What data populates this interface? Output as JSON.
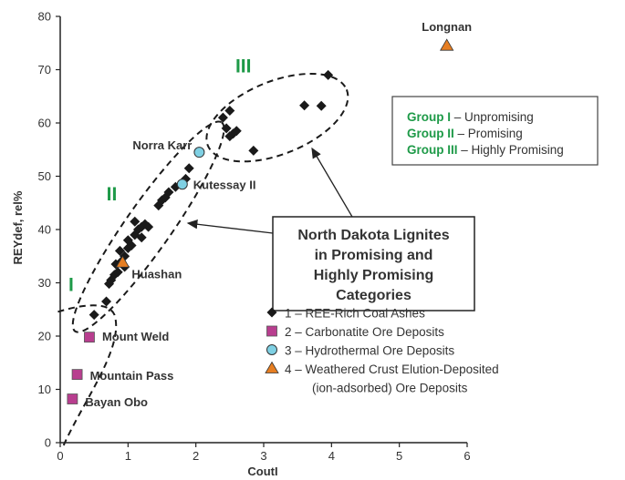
{
  "chart_data": {
    "type": "scatter",
    "xlabel": "CoutI",
    "ylabel": "REYdef, rel%",
    "xlim": [
      0,
      6
    ],
    "ylim": [
      0,
      80
    ],
    "x_ticks": [
      "0",
      "1",
      "2",
      "3",
      "4",
      "5",
      "6"
    ],
    "y_ticks": [
      "0",
      "10",
      "20",
      "30",
      "40",
      "50",
      "60",
      "70",
      "80"
    ],
    "grid": false,
    "legend_position": "bottom-right",
    "series": [
      {
        "name": "1 – REE-Rich Coal Ashes",
        "marker": "diamond",
        "color": "#1a1a1a",
        "points": [
          [
            0.5,
            24
          ],
          [
            0.68,
            26.5
          ],
          [
            0.72,
            29.8
          ],
          [
            0.75,
            30.5
          ],
          [
            0.8,
            31.5
          ],
          [
            0.85,
            32
          ],
          [
            0.82,
            33.5
          ],
          [
            0.9,
            34
          ],
          [
            0.95,
            35
          ],
          [
            0.88,
            36
          ],
          [
            1.0,
            36.5
          ],
          [
            1.05,
            37
          ],
          [
            1.0,
            38
          ],
          [
            1.1,
            39
          ],
          [
            1.15,
            40
          ],
          [
            1.2,
            40.5
          ],
          [
            1.1,
            41.5
          ],
          [
            1.25,
            41
          ],
          [
            1.3,
            40.5
          ],
          [
            1.2,
            38.5
          ],
          [
            0.95,
            33
          ],
          [
            1.45,
            44.5
          ],
          [
            1.5,
            45.5
          ],
          [
            1.55,
            46
          ],
          [
            1.6,
            47
          ],
          [
            1.7,
            48
          ],
          [
            1.85,
            49.5
          ],
          [
            1.9,
            51.5
          ],
          [
            2.4,
            61
          ],
          [
            2.5,
            62.3
          ],
          [
            2.45,
            59
          ],
          [
            2.55,
            58
          ],
          [
            2.5,
            57.5
          ],
          [
            2.6,
            58.5
          ],
          [
            2.85,
            54.8
          ],
          [
            3.6,
            63.3
          ],
          [
            3.85,
            63.2
          ],
          [
            3.95,
            69
          ]
        ]
      },
      {
        "name": "2 – Carbonatite Ore Deposits",
        "marker": "square",
        "color": "#b83e8f",
        "points": [
          [
            0.43,
            19.8
          ],
          [
            0.25,
            12.8
          ],
          [
            0.18,
            8.2
          ]
        ]
      },
      {
        "name": "3 – Hydrothermal Ore Deposits",
        "marker": "circle",
        "color": "#7fd0e3",
        "points": [
          [
            2.05,
            54.5
          ],
          [
            1.8,
            48.5
          ]
        ]
      },
      {
        "name": "4 – Weathered Crust Elution-Deposited (ion-adsorbed) Ore Deposits",
        "marker": "triangle",
        "color": "#e67e22",
        "points": [
          [
            0.92,
            33.8
          ],
          [
            5.7,
            74.5
          ]
        ]
      }
    ],
    "point_labels": [
      {
        "text": "Longnan",
        "x": 5.7,
        "y": 74.5
      },
      {
        "text": "Norra Karr",
        "x": 2.05,
        "y": 54.5
      },
      {
        "text": "Kutessay II",
        "x": 1.8,
        "y": 48.5
      },
      {
        "text": "Huashan",
        "x": 0.92,
        "y": 33.8
      },
      {
        "text": "Mount Weld",
        "x": 0.43,
        "y": 19.8
      },
      {
        "text": "Mountain Pass",
        "x": 0.25,
        "y": 12.8
      },
      {
        "text": "Bayan Obo",
        "x": 0.18,
        "y": 8.2
      }
    ],
    "group_labels": [
      "I",
      "II",
      "III"
    ],
    "group_box": {
      "lines": [
        {
          "group": "Group I",
          "desc": " – Unpromising"
        },
        {
          "group": "Group II",
          "desc": " – Promising"
        },
        {
          "group": "Group III",
          "desc": " – Highly Promising"
        }
      ]
    },
    "callout": {
      "lines": [
        "North Dakota Lignites",
        "in Promising and",
        "Highly Promising",
        "Categories"
      ]
    },
    "legend": {
      "lines": [
        "1 – REE-Rich Coal Ashes",
        "2 – Carbonatite Ore Deposits",
        "3 – Hydrothermal Ore Deposits",
        "4 – Weathered Crust Elution-Deposited",
        "(ion-adsorbed) Ore Deposits"
      ]
    },
    "colors": {
      "group_green": "#1e9a48",
      "axis": "#222222",
      "text": "#333333"
    }
  }
}
